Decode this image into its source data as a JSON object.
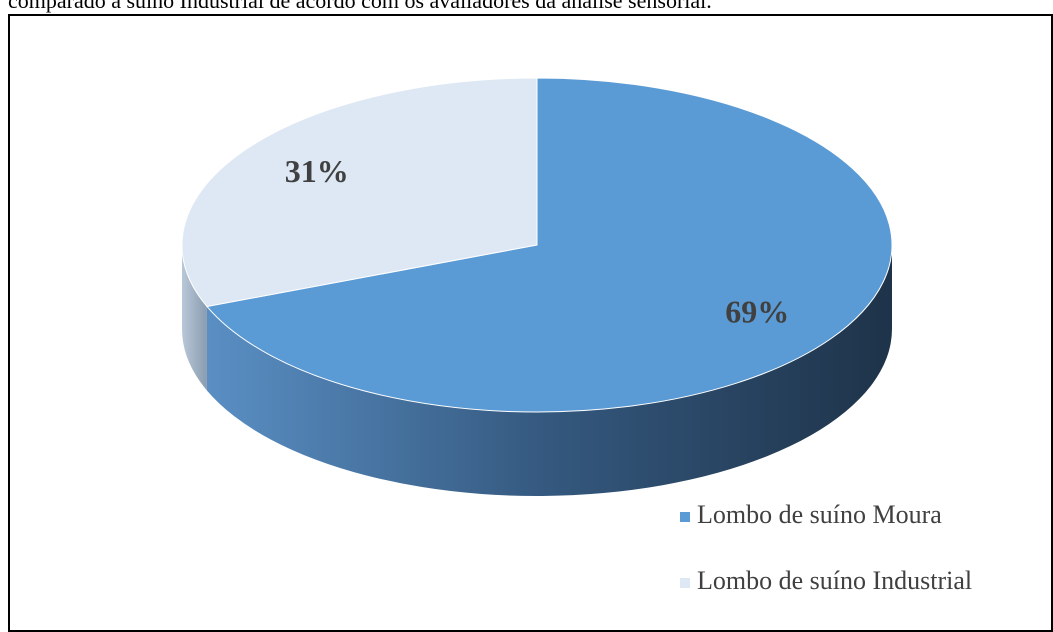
{
  "caption": "comparado a suíno Industrial de acordo com os avaliadores da análise sensorial.",
  "chart_data": {
    "type": "pie",
    "categories": [
      "Lombo de suíno Moura",
      "Lombo de suíno Industrial"
    ],
    "values": [
      69,
      31
    ],
    "value_labels": [
      "69%",
      "31%"
    ],
    "colors": [
      "#5b9bd5",
      "#dde8f4"
    ],
    "legend": "bottom-right"
  }
}
